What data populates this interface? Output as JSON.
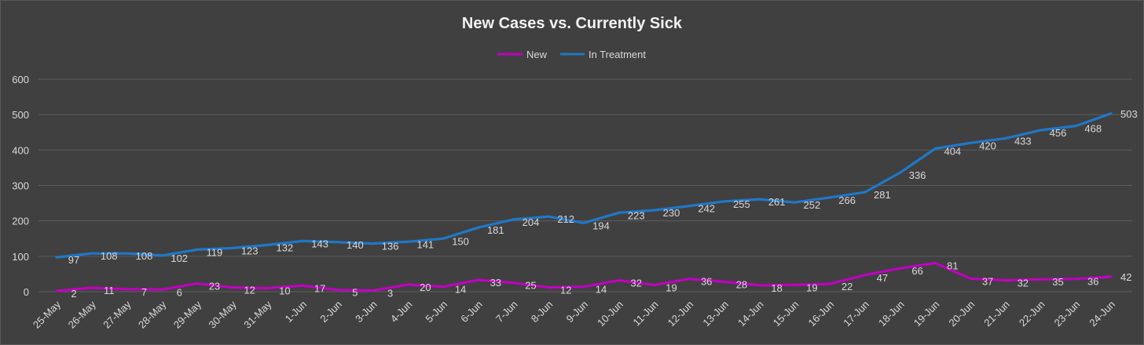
{
  "chart_data": {
    "type": "line",
    "title": "New Cases vs. Currently Sick",
    "xlabel": "",
    "ylabel": "",
    "ylim": [
      0,
      600
    ],
    "yticks": [
      0,
      100,
      200,
      300,
      400,
      500,
      600
    ],
    "grid": true,
    "legend_position": "top-center",
    "categories": [
      "25-May",
      "26-May",
      "27-May",
      "28-May",
      "29-May",
      "30-May",
      "31-May",
      "1-Jun",
      "2-Jun",
      "3-Jun",
      "4-Jun",
      "5-Jun",
      "6-Jun",
      "7-Jun",
      "8-Jun",
      "9-Jun",
      "10-Jun",
      "11-Jun",
      "12-Jun",
      "13-Jun",
      "14-Jun",
      "15-Jun",
      "16-Jun",
      "17-Jun",
      "18-Jun",
      "19-Jun",
      "20-Jun",
      "21-Jun",
      "22-Jun",
      "23-Jun",
      "24-Jun"
    ],
    "series": [
      {
        "name": "New",
        "color": "#c000c0",
        "values": [
          2,
          11,
          7,
          6,
          23,
          12,
          10,
          17,
          5,
          3,
          20,
          14,
          33,
          25,
          12,
          14,
          32,
          19,
          36,
          28,
          18,
          19,
          22,
          47,
          66,
          81,
          37,
          32,
          35,
          36,
          42
        ]
      },
      {
        "name": "In Treatment",
        "color": "#1f78c8",
        "values": [
          97,
          108,
          108,
          102,
          119,
          123,
          132,
          143,
          140,
          136,
          141,
          150,
          181,
          204,
          212,
          194,
          223,
          230,
          242,
          255,
          261,
          252,
          266,
          281,
          336,
          404,
          420,
          433,
          456,
          468,
          503
        ]
      }
    ]
  }
}
